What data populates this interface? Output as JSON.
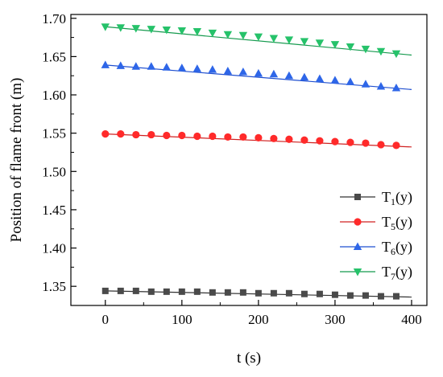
{
  "chart_data": {
    "type": "line",
    "title": "",
    "xlabel": "t (s)",
    "ylabel": "Position of flame front (m)",
    "xlim": [
      -45,
      420
    ],
    "ylim": [
      1.325,
      1.705
    ],
    "xticks": [
      0,
      100,
      200,
      300,
      400
    ],
    "yticks": [
      1.35,
      1.4,
      1.45,
      1.5,
      1.55,
      1.6,
      1.65,
      1.7
    ],
    "ytick_labels": [
      "1.35",
      "1.40",
      "1.45",
      "1.50",
      "1.55",
      "1.60",
      "1.65",
      "1.70"
    ],
    "xtick_labels": [
      "0",
      "100",
      "200",
      "300",
      "400"
    ],
    "grid": false,
    "legend_position": "bottom-right",
    "marker_x": [
      0,
      20,
      40,
      60,
      80,
      100,
      120,
      140,
      160,
      180,
      200,
      220,
      240,
      260,
      280,
      300,
      320,
      340,
      360,
      380
    ],
    "fit_x": [
      0,
      400
    ],
    "series": [
      {
        "name": "T1(y)",
        "name_main": "T",
        "name_sub": "1",
        "name_tail": "(y)",
        "color": "#4a4a4a",
        "line_color": "#333333",
        "marker": "square",
        "values": [
          1.344,
          1.344,
          1.344,
          1.343,
          1.343,
          1.343,
          1.343,
          1.342,
          1.342,
          1.342,
          1.341,
          1.341,
          1.341,
          1.34,
          1.34,
          1.339,
          1.338,
          1.338,
          1.337,
          1.337
        ],
        "fit": [
          1.344,
          1.336
        ]
      },
      {
        "name": "T5(y)",
        "name_main": "T",
        "name_sub": "5",
        "name_tail": "(y)",
        "color": "#ff2a2a",
        "line_color": "#d02020",
        "marker": "circle",
        "values": [
          1.549,
          1.549,
          1.548,
          1.548,
          1.547,
          1.547,
          1.546,
          1.546,
          1.545,
          1.545,
          1.544,
          1.543,
          1.542,
          1.541,
          1.54,
          1.539,
          1.538,
          1.537,
          1.535,
          1.534
        ],
        "fit": [
          1.549,
          1.532
        ]
      },
      {
        "name": "T6(y)",
        "name_main": "T",
        "name_sub": "6",
        "name_tail": "(y)",
        "color": "#2e66e8",
        "line_color": "#1f4fd0",
        "marker": "triangle-up",
        "values": [
          1.639,
          1.638,
          1.637,
          1.637,
          1.636,
          1.635,
          1.634,
          1.633,
          1.631,
          1.63,
          1.628,
          1.627,
          1.625,
          1.623,
          1.621,
          1.619,
          1.617,
          1.614,
          1.611,
          1.609
        ],
        "fit": [
          1.639,
          1.607
        ]
      },
      {
        "name": "T7(y)",
        "name_main": "T",
        "name_sub": "7",
        "name_tail": "(y)",
        "color": "#26c26a",
        "line_color": "#159a4e",
        "marker": "triangle-down",
        "values": [
          1.689,
          1.688,
          1.687,
          1.686,
          1.685,
          1.684,
          1.683,
          1.681,
          1.679,
          1.678,
          1.676,
          1.674,
          1.672,
          1.67,
          1.668,
          1.666,
          1.663,
          1.66,
          1.657,
          1.654
        ],
        "fit": [
          1.689,
          1.652
        ]
      }
    ]
  }
}
